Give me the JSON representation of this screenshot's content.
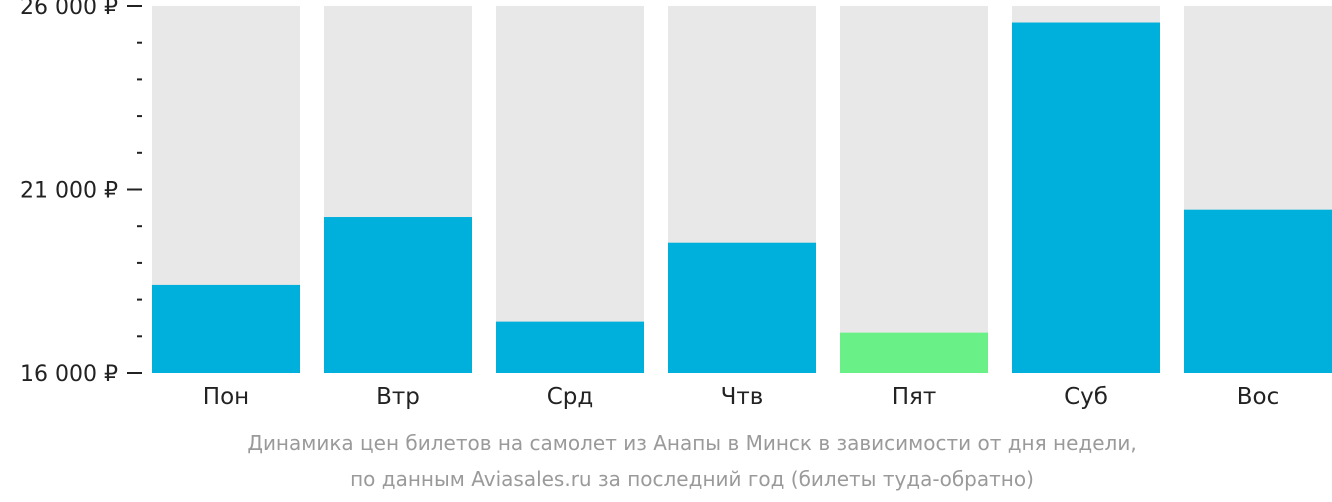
{
  "chart_data": {
    "type": "bar",
    "categories": [
      "Пон",
      "Втр",
      "Срд",
      "Чтв",
      "Пят",
      "Суб",
      "Вос"
    ],
    "values": [
      18400,
      20250,
      17400,
      19550,
      17100,
      25550,
      20450
    ],
    "highlight_index": 4,
    "ylim": [
      16000,
      26000
    ],
    "yticks": [
      {
        "value": 16000,
        "label": "16 000 ₽"
      },
      {
        "value": 21000,
        "label": "21 000 ₽"
      },
      {
        "value": 26000,
        "label": "26 000 ₽"
      }
    ],
    "minor_tick_step": 1000,
    "colors": {
      "bar": "#00b0dc",
      "bar_highlight": "#69f188",
      "bar_background": "#e8e8e8",
      "axis": "#222222",
      "caption": "#9a9a9a"
    },
    "caption": [
      "Динамика цен билетов на самолет из Анапы в Минск в зависимости от дня недели,",
      "по данным Aviasales.ru за последний год (билеты туда-обратно)"
    ]
  }
}
